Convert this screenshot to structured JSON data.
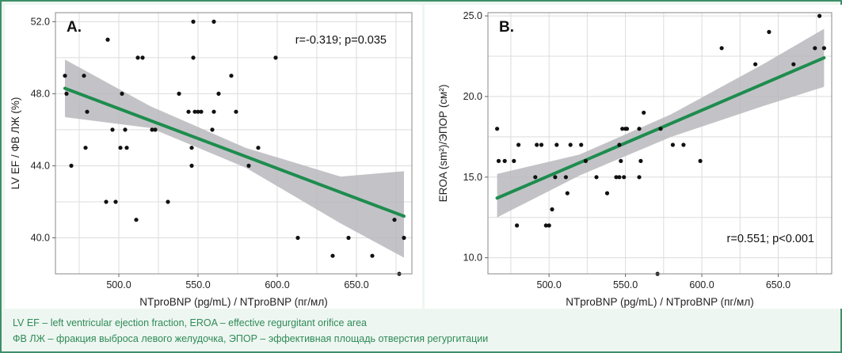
{
  "chart_data": [
    {
      "type": "scatter",
      "panel_label": "A.",
      "xlabel": "NTproBNP (pg/mL) / NTproBNP (пг/мл)",
      "ylabel": "LV EF / ФВ ЛЖ (%)",
      "annotation": "r=-0.319; p=0.035",
      "xlim": [
        460,
        685
      ],
      "ylim": [
        38,
        52.5
      ],
      "x_ticks": [
        500,
        550,
        600,
        650
      ],
      "x_tick_labels": [
        "500.0",
        "550.0",
        "600.0",
        "650.0"
      ],
      "y_ticks": [
        40,
        44,
        48,
        52
      ],
      "y_tick_labels": [
        "40.0",
        "44.0",
        "48.0",
        "52.0"
      ],
      "grid": true,
      "colors": {
        "points": "#111111",
        "trend": "#1e8c4e",
        "ci_band": "#b9b9bd"
      },
      "trend": {
        "x": [
          466,
          680
        ],
        "y": [
          48.3,
          41.2
        ]
      },
      "ci_band": {
        "x": [
          466,
          520,
          580,
          640,
          680
        ],
        "lower": [
          46.7,
          46.1,
          43.9,
          40.8,
          38.9
        ],
        "upper": [
          49.9,
          47.3,
          45.0,
          43.4,
          43.7
        ]
      },
      "points": [
        [
          466,
          49
        ],
        [
          467,
          48
        ],
        [
          470,
          44
        ],
        [
          478,
          49
        ],
        [
          479,
          45
        ],
        [
          480,
          47
        ],
        [
          492,
          42
        ],
        [
          493,
          51
        ],
        [
          496,
          46
        ],
        [
          498,
          42
        ],
        [
          501,
          45
        ],
        [
          502,
          48
        ],
        [
          504,
          46
        ],
        [
          505,
          45
        ],
        [
          511,
          41
        ],
        [
          512,
          50
        ],
        [
          515,
          50
        ],
        [
          521,
          46
        ],
        [
          523,
          46
        ],
        [
          531,
          42
        ],
        [
          538,
          48
        ],
        [
          544,
          47
        ],
        [
          546,
          45
        ],
        [
          546,
          44
        ],
        [
          547,
          50
        ],
        [
          547,
          52
        ],
        [
          548,
          47
        ],
        [
          550,
          47
        ],
        [
          552,
          47
        ],
        [
          559,
          46
        ],
        [
          560,
          52
        ],
        [
          560,
          47
        ],
        [
          563,
          48
        ],
        [
          571,
          49
        ],
        [
          574,
          47
        ],
        [
          582,
          44
        ],
        [
          588,
          45
        ],
        [
          599,
          50
        ],
        [
          613,
          40
        ],
        [
          635,
          39
        ],
        [
          645,
          40
        ],
        [
          660,
          39
        ],
        [
          674,
          41
        ],
        [
          677,
          38
        ],
        [
          680,
          40
        ]
      ]
    },
    {
      "type": "scatter",
      "panel_label": "B.",
      "xlabel": "NTproBNP (pg/mL) / NTproBNP (пг/мл)",
      "ylabel": "EROA (sm²)/ЭПОР (см²)",
      "annotation": "r=0.551; p<0.001",
      "xlim": [
        460,
        685
      ],
      "ylim": [
        9,
        25.2
      ],
      "x_ticks": [
        500,
        550,
        600,
        650
      ],
      "x_tick_labels": [
        "500.0",
        "550.0",
        "600.0",
        "650.0"
      ],
      "y_ticks": [
        10,
        15,
        20,
        25
      ],
      "y_tick_labels": [
        "10.0",
        "15.0",
        "20.0",
        "25.0"
      ],
      "grid": true,
      "colors": {
        "points": "#111111",
        "trend": "#1e8c4e",
        "ci_band": "#b9b9bd"
      },
      "trend": {
        "x": [
          466,
          680
        ],
        "y": [
          13.7,
          22.4
        ]
      },
      "ci_band": {
        "x": [
          466,
          520,
          580,
          640,
          680
        ],
        "lower": [
          12.5,
          15.1,
          17.5,
          19.4,
          20.6
        ],
        "upper": [
          15.2,
          16.4,
          18.9,
          22.0,
          24.2
        ]
      },
      "points": [
        [
          466,
          18
        ],
        [
          467,
          16
        ],
        [
          471,
          16
        ],
        [
          477,
          16
        ],
        [
          479,
          12
        ],
        [
          480,
          17
        ],
        [
          491,
          15
        ],
        [
          492,
          17
        ],
        [
          495,
          17
        ],
        [
          498,
          12
        ],
        [
          500,
          12
        ],
        [
          502,
          13
        ],
        [
          504,
          15
        ],
        [
          505,
          17
        ],
        [
          511,
          15
        ],
        [
          512,
          14
        ],
        [
          514,
          17
        ],
        [
          521,
          17
        ],
        [
          524,
          16
        ],
        [
          531,
          15
        ],
        [
          538,
          14
        ],
        [
          544,
          15
        ],
        [
          546,
          15
        ],
        [
          546,
          17
        ],
        [
          547,
          16
        ],
        [
          548,
          18
        ],
        [
          549,
          15
        ],
        [
          550,
          18
        ],
        [
          551,
          18
        ],
        [
          559,
          15
        ],
        [
          559,
          18
        ],
        [
          560,
          16
        ],
        [
          562,
          19
        ],
        [
          571,
          9
        ],
        [
          573,
          18
        ],
        [
          581,
          17
        ],
        [
          588,
          17
        ],
        [
          599,
          16
        ],
        [
          613,
          23
        ],
        [
          635,
          22
        ],
        [
          644,
          24
        ],
        [
          660,
          22
        ],
        [
          674,
          23
        ],
        [
          677,
          25
        ],
        [
          680,
          23
        ]
      ]
    }
  ],
  "caption": {
    "line1": "LV EF – left ventricular ejection fraction, EROA – effective regurgitant orifice area",
    "line2": "ФВ ЛЖ – фракция выброса левого желудочка, ЭПОР – эффективная площадь отверстия регургитации"
  }
}
